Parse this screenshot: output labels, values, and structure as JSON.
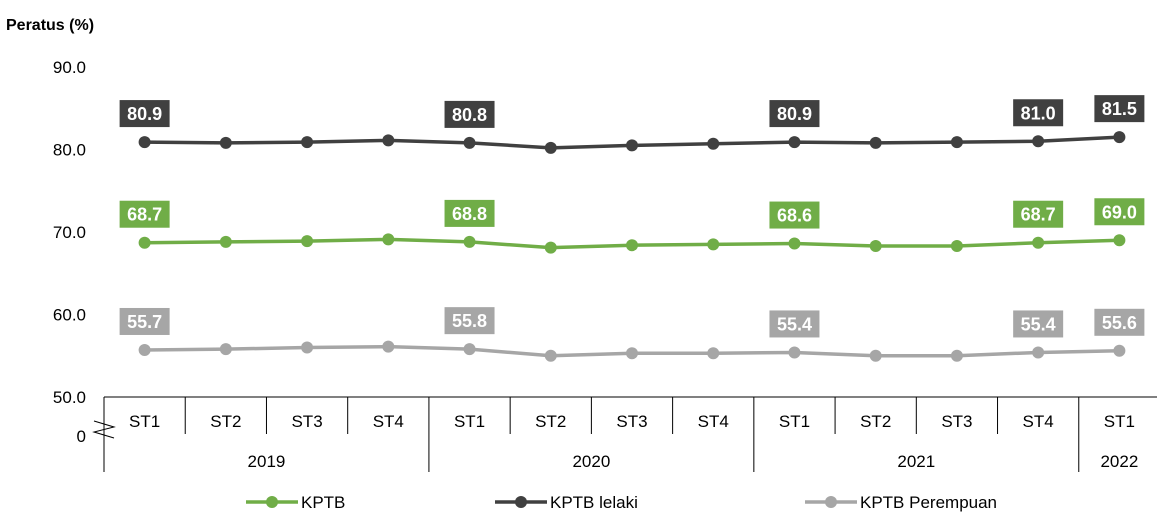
{
  "chart_data": {
    "type": "line",
    "ylabel": "Peratus (%)",
    "yticks": [
      "90.0",
      "80.0",
      "70.0",
      "60.0",
      "50.0"
    ],
    "ytick_values": [
      90,
      80,
      70,
      60,
      50
    ],
    "zero_label": "0",
    "ylim": [
      50,
      90
    ],
    "categories": [
      "ST1",
      "ST2",
      "ST3",
      "ST4",
      "ST1",
      "ST2",
      "ST3",
      "ST4",
      "ST1",
      "ST2",
      "ST3",
      "ST4",
      "ST1"
    ],
    "years": [
      {
        "label": "2019",
        "span": 4
      },
      {
        "label": "2020",
        "span": 4
      },
      {
        "label": "2021",
        "span": 4
      },
      {
        "label": "2022",
        "span": 1
      }
    ],
    "series": [
      {
        "name": "KPTB lelaki",
        "color": "#404040",
        "values": [
          80.9,
          80.8,
          80.9,
          81.1,
          80.8,
          80.2,
          80.5,
          80.7,
          80.9,
          80.8,
          80.9,
          81.0,
          81.5
        ],
        "labels": [
          {
            "index": 0,
            "text": "80.9"
          },
          {
            "index": 4,
            "text": "80.8"
          },
          {
            "index": 8,
            "text": "80.9"
          },
          {
            "index": 11,
            "text": "81.0"
          },
          {
            "index": 12,
            "text": "81.5"
          }
        ]
      },
      {
        "name": "KPTB",
        "color": "#70ad47",
        "values": [
          68.7,
          68.8,
          68.9,
          69.1,
          68.8,
          68.1,
          68.4,
          68.5,
          68.6,
          68.3,
          68.3,
          68.7,
          69.0
        ],
        "labels": [
          {
            "index": 0,
            "text": "68.7"
          },
          {
            "index": 4,
            "text": "68.8"
          },
          {
            "index": 8,
            "text": "68.6"
          },
          {
            "index": 11,
            "text": "68.7"
          },
          {
            "index": 12,
            "text": "69.0"
          }
        ]
      },
      {
        "name": "KPTB Perempuan",
        "color": "#a6a6a6",
        "values": [
          55.7,
          55.8,
          56.0,
          56.1,
          55.8,
          55.0,
          55.3,
          55.3,
          55.4,
          55.0,
          55.0,
          55.4,
          55.6
        ],
        "labels": [
          {
            "index": 0,
            "text": "55.7"
          },
          {
            "index": 4,
            "text": "55.8"
          },
          {
            "index": 8,
            "text": "55.4"
          },
          {
            "index": 11,
            "text": "55.4"
          },
          {
            "index": 12,
            "text": "55.6"
          }
        ]
      }
    ],
    "legend": [
      "KPTB",
      "KPTB lelaki",
      "KPTB Perempuan"
    ],
    "legend_position": "bottom"
  }
}
